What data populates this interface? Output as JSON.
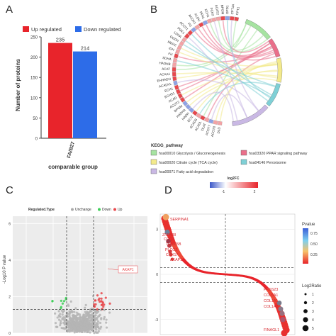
{
  "panels": {
    "a": "A",
    "b": "B",
    "c": "C",
    "d": "D"
  },
  "chart_data": [
    {
      "type": "bar",
      "ylabel": "Number of proteins",
      "xlabel": "comparable group",
      "categories": [
        "FA/B27"
      ],
      "series": [
        {
          "name": "Up regulated",
          "values": [
            235
          ],
          "color": "#e8242b"
        },
        {
          "name": "Down regulated",
          "values": [
            214
          ],
          "color": "#2d6ce8"
        }
      ],
      "ylim": [
        0,
        250
      ],
      "yticks": [
        0,
        50,
        100,
        150,
        200,
        250
      ],
      "legend": "top"
    },
    {
      "type": "chord",
      "genes_right": [
        "LDHA",
        "PGK1",
        "ACOT1",
        "PC",
        "ACOX1",
        "ALDH",
        "PFKL",
        "ECH1",
        "PCK2",
        "ACAT2",
        "BPGM",
        "GPD1",
        "CPT1A",
        "CPT1"
      ],
      "genes_left": [
        "DLD",
        "ACOT8",
        "ACOT7",
        "DLAT",
        "ACADL",
        "ACADS",
        "ECI2",
        "HADH",
        "HADHA",
        "BPGM",
        "ACOT2",
        "ACAD",
        "ECHS1",
        "ECH1",
        "ACADVL",
        "EHHADH",
        "ACAA1",
        "ACAT",
        "HADHB",
        "SDHA",
        "FH",
        "IDH",
        "MDH2",
        "OGDH"
      ],
      "legend_title": "KEGG_pathway",
      "pathways": [
        {
          "label": "hsa00010 Glycolysis / Gluconeogenesis",
          "color": "#a6e3a1"
        },
        {
          "label": "hsa03320 PPAR signaling pathway",
          "color": "#ea6f8a"
        },
        {
          "label": "hsa00020 Citrate cycle (TCA cycle)",
          "color": "#f3ea8c"
        },
        {
          "label": "hsa04146 Peroxisome",
          "color": "#7fd0d6"
        },
        {
          "label": "hsa00071 Fatty acid degradation",
          "color": "#c9b8e4"
        }
      ],
      "colorbar_title": "log2FC",
      "colorbar_min": "-1",
      "colorbar_max": "2"
    },
    {
      "type": "scatter",
      "legend_title": "Regulated.Type",
      "legend_items": [
        {
          "name": "Unchange",
          "color": "#aaaaaa"
        },
        {
          "name": "Down",
          "color": "#3ccf56"
        },
        {
          "name": "Up",
          "color": "#e8474a"
        }
      ],
      "ylabel": "-Log10 P value",
      "yticks": [
        "0",
        "2",
        "4",
        "6"
      ],
      "annotation": "AKAP1",
      "ylim": [
        0,
        6.4
      ],
      "xlim": [
        -5,
        5
      ],
      "threshold_x": [
        -1,
        1
      ],
      "threshold_y": 1.3
    },
    {
      "type": "scatter",
      "ylim": [
        -4,
        4
      ],
      "yticks": [
        "3",
        "0",
        "-3"
      ],
      "top_labels": [
        "SERPINA1",
        "ZNF438",
        "COQ3",
        "TMM65B",
        "PLCG2",
        "COX17",
        "AKAP1"
      ],
      "bottom_labels": [
        "PRSS23",
        "COL5A1",
        "COL1A1",
        "COL1A2",
        "FINAGL1"
      ],
      "pvalue_title": "Pvalue",
      "pvalue_ticks": [
        "0.75",
        "0.50",
        "0.25"
      ],
      "size_title": "Log2Ratio",
      "size_ticks": [
        "1",
        "2",
        "3",
        "4",
        "5"
      ]
    }
  ]
}
